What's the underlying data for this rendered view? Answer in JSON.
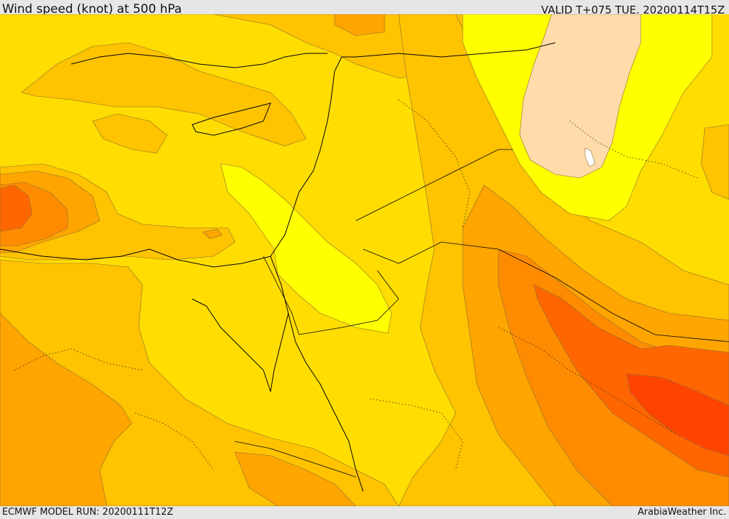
{
  "header": {
    "title": "Wind speed (knot) at 500 hPa",
    "valid": "VALID T+075 TUE. 20200114T15Z"
  },
  "footer": {
    "model_run": "ECMWF MODEL RUN: 20200111T12Z",
    "credit": "ArabiaWeather Inc."
  },
  "map": {
    "variable": "wind speed",
    "level": "500 hPa",
    "units": "knot",
    "colors": {
      "base": "#ffdd00",
      "light_orange": "#ffc300",
      "orange": "#ffa500",
      "dark_orange": "#ff8c00",
      "red_orange": "#ff6600",
      "red": "#ff4400",
      "yellow": "#ffff00",
      "peach": "#ffdcaa",
      "white": "#ffffff"
    }
  }
}
